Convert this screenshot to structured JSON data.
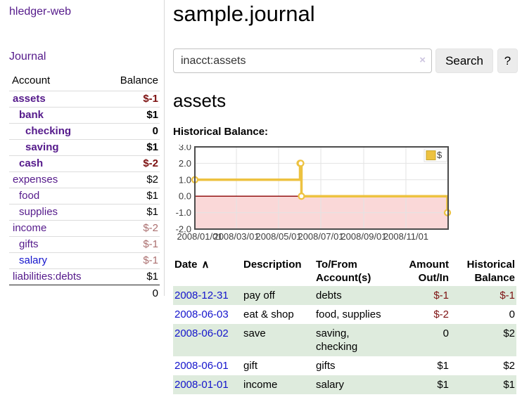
{
  "app": {
    "brand": "hledger-web"
  },
  "sidebar": {
    "journal_label": "Journal",
    "accounts_table": {
      "headers": {
        "account": "Account",
        "balance": "Balance"
      },
      "rows": [
        {
          "name": "assets",
          "indent": 1,
          "bold": true,
          "balance": "$-1",
          "negative": "strong"
        },
        {
          "name": "bank",
          "indent": 2,
          "bold": true,
          "balance": "$1"
        },
        {
          "name": "checking",
          "indent": 3,
          "bold": true,
          "balance": "0"
        },
        {
          "name": "saving",
          "indent": 3,
          "bold": true,
          "balance": "$1"
        },
        {
          "name": "cash",
          "indent": 2,
          "bold": true,
          "balance": "$-2",
          "negative": "strong"
        },
        {
          "name": "expenses",
          "indent": 1,
          "bold": false,
          "balance": "$2"
        },
        {
          "name": "food",
          "indent": 2,
          "bold": false,
          "balance": "$1"
        },
        {
          "name": "supplies",
          "indent": 2,
          "bold": false,
          "balance": "$1"
        },
        {
          "name": "income",
          "indent": 1,
          "bold": false,
          "balance": "$-2",
          "negative": "soft"
        },
        {
          "name": "gifts",
          "indent": 2,
          "bold": false,
          "balance": "$-1",
          "negative": "soft"
        },
        {
          "name": "salary",
          "indent": 2,
          "bold": false,
          "balance": "$-1",
          "negative": "soft",
          "link_style": "unvisited"
        },
        {
          "name": "liabilities:debts",
          "indent": 1,
          "bold": false,
          "balance": "$1"
        }
      ],
      "total": "0"
    }
  },
  "header": {
    "title": "sample.journal"
  },
  "search": {
    "value": "inacct:assets",
    "clear_icon": "×",
    "button_label": "Search",
    "help_label": "?"
  },
  "account_page": {
    "heading": "assets",
    "chart_label": "Historical Balance:"
  },
  "chart_data": {
    "type": "line",
    "style": "step",
    "title": "Historical Balance:",
    "series": [
      {
        "name": "$",
        "color": "#EDC240",
        "points": [
          [
            "2008-01-01",
            1
          ],
          [
            "2008-06-01",
            2
          ],
          [
            "2008-06-02",
            2
          ],
          [
            "2008-06-03",
            0
          ],
          [
            "2008-12-31",
            -1
          ]
        ]
      }
    ],
    "ylim": [
      -2,
      3
    ],
    "y_ticks": [
      3.0,
      2.0,
      1.0,
      0.0,
      -1.0,
      -2.0
    ],
    "x_ticks": [
      "2008/01/01",
      "2008/03/01",
      "2008/05/01",
      "2008/07/01",
      "2008/09/01",
      "2008/11/01"
    ],
    "xlim": [
      "2008-01-01",
      "2009-01-01"
    ],
    "grid": true,
    "legend_position": "top-right",
    "negative_region_fill": "#f5b8b8",
    "zero_line_color": "#8b0000",
    "grid_color": "#e3e3e3",
    "border_color": "#4c4c4c"
  },
  "register_table": {
    "columns": [
      {
        "line1": "Date",
        "line2": "",
        "sort_icon": "∧"
      },
      {
        "line1": "Description",
        "line2": ""
      },
      {
        "line1": "To/From",
        "line2": "Account(s)"
      },
      {
        "line1": "Amount",
        "line2": "Out/In"
      },
      {
        "line1": "Historical",
        "line2": "Balance"
      }
    ],
    "rows": [
      {
        "date": "2008-12-31",
        "description": "pay off",
        "accounts": "debts",
        "amount": "$-1",
        "amount_neg": true,
        "balance": "$-1",
        "balance_neg": true
      },
      {
        "date": "2008-06-03",
        "description": "eat & shop",
        "accounts": "food, supplies",
        "amount": "$-2",
        "amount_neg": true,
        "balance": "0",
        "balance_neg": false
      },
      {
        "date": "2008-06-02",
        "description": "save",
        "accounts": "saving, checking",
        "amount": "0",
        "amount_neg": false,
        "balance": "$2",
        "balance_neg": false
      },
      {
        "date": "2008-06-01",
        "description": "gift",
        "accounts": "gifts",
        "amount": "$1",
        "amount_neg": false,
        "balance": "$2",
        "balance_neg": false
      },
      {
        "date": "2008-01-01",
        "description": "income",
        "accounts": "salary",
        "amount": "$1",
        "amount_neg": false,
        "balance": "$1",
        "balance_neg": false
      }
    ]
  },
  "colors": {
    "link_purple": "#551A8B",
    "link_blue": "#1414cc",
    "negative_strong": "#7d1111",
    "negative_soft": "#ab6f6f",
    "row_green": "#deebdd",
    "chart_yellow": "#EDC240",
    "chart_negative_pink": "#f9d9d9",
    "zero_line_red": "#8b0000",
    "button_gray": "#ececec",
    "divider_gray": "#d8d8d8"
  }
}
